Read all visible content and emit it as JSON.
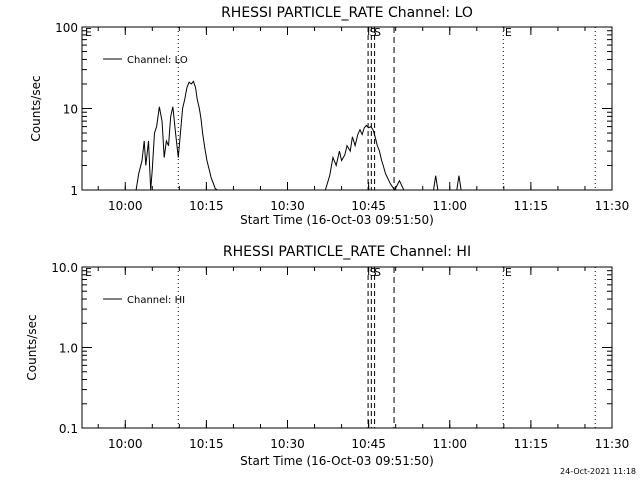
{
  "footer": {
    "timestamp": "24-Oct-2021 11:18"
  },
  "chart_data": [
    {
      "type": "line",
      "title": "RHESSI PARTICLE_RATE Channel: LO",
      "xlabel": "Start Time (16-Oct-03 09:51:50)",
      "ylabel": "Counts/sec",
      "yscale": "log",
      "xlim_minutes_after_0951": [
        0,
        98
      ],
      "ylim": [
        1,
        100
      ],
      "x_tick_labels": [
        "10:00",
        "10:15",
        "10:30",
        "10:45",
        "11:00",
        "11:15",
        "11:30"
      ],
      "x_tick_minutes": [
        8,
        23,
        38,
        53,
        68,
        83,
        98
      ],
      "y_tick_labels": [
        "1",
        "10",
        "100"
      ],
      "y_tick_values": [
        1,
        10,
        100
      ],
      "legend": {
        "entries": [
          "Channel: LO"
        ],
        "placement": "top-left"
      },
      "series": [
        {
          "name": "Channel: LO",
          "x_minutes": [
            10.0,
            10.5,
            11.1,
            11.5,
            11.8,
            12.3,
            12.7,
            13.0,
            13.4,
            13.8,
            14.3,
            14.8,
            15.2,
            15.6,
            16.0,
            16.4,
            16.8,
            17.3,
            17.8,
            18.2,
            18.6,
            19.0,
            19.4,
            19.8,
            20.2,
            20.6,
            21.0,
            21.3,
            21.7,
            22.0,
            22.3,
            22.7,
            23.1,
            23.5,
            23.9,
            24.3,
            24.6,
            25.0,
            25.3,
            45.0,
            45.8,
            46.4,
            47.0,
            47.6,
            48.0,
            48.6,
            49.0,
            49.6,
            50.0,
            50.5,
            51.0,
            51.4,
            51.8,
            52.2,
            52.6,
            53.0,
            53.4,
            53.8,
            54.2,
            54.6,
            55.0,
            55.4,
            55.7,
            56.1,
            56.3,
            57.0,
            57.8,
            58.7,
            59.5,
            61.0,
            65.0,
            65.4,
            65.8,
            69.3,
            69.7,
            70.1
          ],
          "y": [
            1.0,
            1.6,
            2.3,
            4.0,
            2.0,
            4.0,
            1.0,
            1.8,
            5.0,
            6.0,
            10.5,
            7.0,
            2.5,
            4.0,
            3.5,
            8.0,
            10.5,
            5.0,
            2.5,
            5.0,
            10.0,
            13.0,
            18.0,
            21.0,
            20.0,
            21.5,
            18.0,
            13.0,
            10.0,
            7.5,
            5.0,
            3.3,
            2.3,
            1.8,
            1.4,
            1.2,
            1.05,
            1.0,
            1.0,
            1.0,
            1.5,
            2.5,
            2.0,
            3.0,
            2.3,
            2.7,
            3.5,
            3.0,
            4.5,
            3.5,
            4.8,
            5.5,
            4.8,
            5.8,
            6.2,
            5.8,
            6.0,
            5.5,
            4.5,
            3.5,
            3.0,
            2.3,
            2.0,
            1.6,
            1.5,
            1.2,
            1.0,
            1.3,
            1.0,
            1.0,
            1.0,
            1.5,
            1.0,
            1.0,
            1.5,
            1.0
          ]
        }
      ],
      "markers": [
        {
          "label": "E",
          "x_minutes": 0
        },
        {
          "label": "S",
          "x_minutes": 53.0
        },
        {
          "label": "S",
          "x_minutes": 53.8
        },
        {
          "label": "E",
          "x_minutes": 78.0
        }
      ]
    },
    {
      "type": "line",
      "title": "RHESSI PARTICLE_RATE Channel: HI",
      "xlabel": "Start Time (16-Oct-03 09:51:50)",
      "ylabel": "Counts/sec",
      "yscale": "log",
      "xlim_minutes_after_0951": [
        0,
        98
      ],
      "ylim": [
        0.1,
        10.0
      ],
      "x_tick_labels": [
        "10:00",
        "10:15",
        "10:30",
        "10:45",
        "11:00",
        "11:15",
        "11:30"
      ],
      "x_tick_minutes": [
        8,
        23,
        38,
        53,
        68,
        83,
        98
      ],
      "y_tick_labels": [
        "0.1",
        "1.0",
        "10.0"
      ],
      "y_tick_values": [
        0.1,
        1.0,
        10.0
      ],
      "legend": {
        "entries": [
          "Channel: HI"
        ],
        "placement": "top-left"
      },
      "series": [
        {
          "name": "Channel: HI",
          "x_minutes": [],
          "y": []
        }
      ],
      "markers": [
        {
          "label": "E",
          "x_minutes": 0
        },
        {
          "label": "S",
          "x_minutes": 53.0
        },
        {
          "label": "S",
          "x_minutes": 53.8
        },
        {
          "label": "E",
          "x_minutes": 78.0
        }
      ]
    }
  ]
}
